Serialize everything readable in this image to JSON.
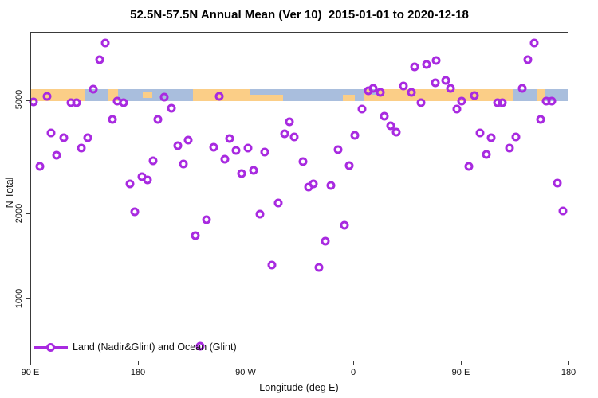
{
  "title": "52.5N-57.5N Annual Mean (Ver 10)  2015-01-01 to 2020-12-18",
  "legend": {
    "label": "Land (Nadir&Glint) and Ocean (Glint)"
  },
  "chart_data": {
    "type": "scatter",
    "title": "52.5N-57.5N Annual Mean (Ver 10)  2015-01-01 to 2020-12-18",
    "xlabel": "Longitude (deg E)",
    "ylabel": "N Total",
    "x_axis": {
      "note": "longitude axis spans 450 deg, wrapping 90E->180->90W->0->90E->180",
      "span_deg": 450,
      "ticks": [
        {
          "deg": 0,
          "label": "90 E"
        },
        {
          "deg": 90,
          "label": "180"
        },
        {
          "deg": 180,
          "label": "90 W"
        },
        {
          "deg": 270,
          "label": "0"
        },
        {
          "deg": 360,
          "label": "90 E"
        },
        {
          "deg": 450,
          "label": "180"
        }
      ]
    },
    "y_axis": {
      "scale": "log10",
      "ticks": [
        1000,
        2000,
        5000
      ],
      "range": [
        600,
        8600
      ],
      "grid": false
    },
    "series": [
      {
        "name": "Land (Nadir&Glint) and Ocean (Glint)",
        "marker": "open-circle",
        "color": "#a82ae0",
        "points_deg_value": [
          [
            2.7,
            4910
          ],
          [
            62.9,
            7930
          ],
          [
            57.8,
            6930
          ],
          [
            52.7,
            5470
          ],
          [
            13.8,
            5150
          ],
          [
            33.8,
            4880
          ],
          [
            38.5,
            4880
          ],
          [
            72.5,
            4950
          ],
          [
            77.8,
            4890
          ],
          [
            112,
            5110
          ],
          [
            117.8,
            4660
          ],
          [
            68.5,
            4270
          ],
          [
            106.9,
            4270
          ],
          [
            17.3,
            3830
          ],
          [
            28,
            3670
          ],
          [
            47.8,
            3670
          ],
          [
            42.9,
            3390
          ],
          [
            22,
            3200
          ],
          [
            8,
            2920
          ],
          [
            102.9,
            3050
          ],
          [
            93.1,
            2690
          ],
          [
            97.8,
            2620
          ],
          [
            83.3,
            2530
          ],
          [
            87.3,
            2020
          ],
          [
            157.8,
            5140
          ],
          [
            216.9,
            4190
          ],
          [
            212.9,
            3790
          ],
          [
            220.5,
            3710
          ],
          [
            132.2,
            3610
          ],
          [
            123.3,
            3440
          ],
          [
            166.7,
            3660
          ],
          [
            153.1,
            3400
          ],
          [
            171.8,
            3310
          ],
          [
            181.8,
            3390
          ],
          [
            196.2,
            3280
          ],
          [
            162.9,
            3090
          ],
          [
            227.9,
            3040
          ],
          [
            127.8,
            2970
          ],
          [
            176.9,
            2760
          ],
          [
            186.5,
            2830
          ],
          [
            207.1,
            2170
          ],
          [
            192.2,
            1980
          ],
          [
            147.3,
            1890
          ],
          [
            137.8,
            1660
          ],
          [
            201.8,
            1310
          ],
          [
            141.8,
            680
          ],
          [
            321.3,
            6520
          ],
          [
            331.3,
            6670
          ],
          [
            339.3,
            6880
          ],
          [
            312,
            5610
          ],
          [
            318.5,
            5310
          ],
          [
            338.7,
            5740
          ],
          [
            282.9,
            5380
          ],
          [
            286.9,
            5490
          ],
          [
            292.5,
            5330
          ],
          [
            326.5,
            4880
          ],
          [
            277.3,
            4630
          ],
          [
            296.2,
            4380
          ],
          [
            301.3,
            4050
          ],
          [
            306,
            3850
          ],
          [
            271.5,
            3750
          ],
          [
            257.3,
            3330
          ],
          [
            266.5,
            2940
          ],
          [
            236.5,
            2530
          ],
          [
            232.9,
            2470
          ],
          [
            251.3,
            2500
          ],
          [
            262.5,
            1810
          ],
          [
            246.9,
            1590
          ],
          [
            241.3,
            1290
          ],
          [
            421.3,
            7940
          ],
          [
            416,
            6930
          ],
          [
            347.1,
            5860
          ],
          [
            351.3,
            5500
          ],
          [
            371.5,
            5180
          ],
          [
            411.1,
            5490
          ],
          [
            360.7,
            4940
          ],
          [
            356.5,
            4650
          ],
          [
            390.7,
            4880
          ],
          [
            394.9,
            4880
          ],
          [
            431.1,
            4940
          ],
          [
            435.8,
            4940
          ],
          [
            426.5,
            4270
          ],
          [
            376,
            3830
          ],
          [
            385.3,
            3670
          ],
          [
            406,
            3710
          ],
          [
            400.5,
            3390
          ],
          [
            381.3,
            3210
          ],
          [
            366.7,
            2920
          ],
          [
            440.5,
            2540
          ],
          [
            445.3,
            2030
          ]
        ]
      }
    ],
    "map_strip": {
      "description": "land/ocean strip for 52.5N-57.5N drawn across the plot near N=5200",
      "center_value": 5200,
      "land_color": "#fbce87",
      "ocean_color": "#a9bedd",
      "segments": [
        {
          "from": 0,
          "to": 45,
          "surface": "land",
          "band": "full"
        },
        {
          "from": 45,
          "to": 65,
          "surface": "ocean",
          "band": "full"
        },
        {
          "from": 65,
          "to": 73,
          "surface": "land",
          "band": "full"
        },
        {
          "from": 73,
          "to": 136,
          "surface": "ocean",
          "band": "full"
        },
        {
          "from": 94,
          "to": 102,
          "surface": "land",
          "band": "middle"
        },
        {
          "from": 136,
          "to": 184,
          "surface": "land",
          "band": "full"
        },
        {
          "from": 184,
          "to": 211,
          "surface": "ocean",
          "band": "top"
        },
        {
          "from": 184,
          "to": 211,
          "surface": "land",
          "band": "bottom"
        },
        {
          "from": 211,
          "to": 261,
          "surface": "ocean",
          "band": "full"
        },
        {
          "from": 261,
          "to": 271,
          "surface": "ocean",
          "band": "top"
        },
        {
          "from": 261,
          "to": 271,
          "surface": "land",
          "band": "bottom"
        },
        {
          "from": 271,
          "to": 279,
          "surface": "ocean",
          "band": "full"
        },
        {
          "from": 279,
          "to": 404,
          "surface": "land",
          "band": "full"
        },
        {
          "from": 285,
          "to": 291,
          "surface": "ocean",
          "band": "top"
        },
        {
          "from": 404,
          "to": 423,
          "surface": "ocean",
          "band": "full"
        },
        {
          "from": 423,
          "to": 430,
          "surface": "land",
          "band": "full"
        },
        {
          "from": 430,
          "to": 450,
          "surface": "ocean",
          "band": "full"
        }
      ]
    }
  }
}
